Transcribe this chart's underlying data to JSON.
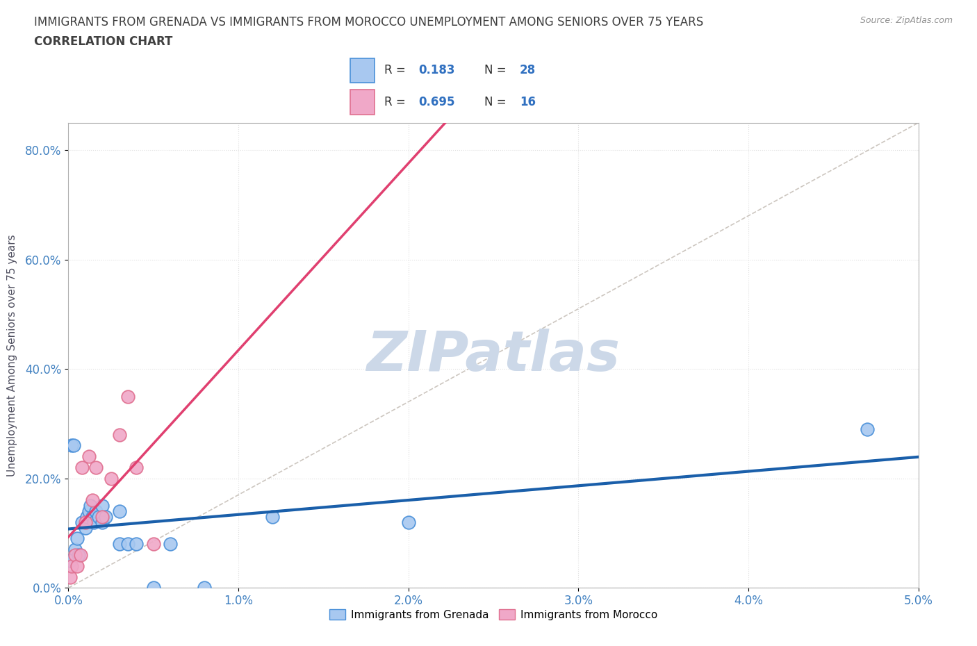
{
  "title_line1": "IMMIGRANTS FROM GRENADA VS IMMIGRANTS FROM MOROCCO UNEMPLOYMENT AMONG SENIORS OVER 75 YEARS",
  "title_line2": "CORRELATION CHART",
  "source_text": "Source: ZipAtlas.com",
  "ylabel": "Unemployment Among Seniors over 75 years",
  "xlim": [
    0.0,
    0.05
  ],
  "ylim": [
    0.0,
    0.85
  ],
  "xticks": [
    0.0,
    0.01,
    0.02,
    0.03,
    0.04,
    0.05
  ],
  "xticklabels": [
    "0.0%",
    "1.0%",
    "2.0%",
    "3.0%",
    "4.0%",
    "5.0%"
  ],
  "yticks": [
    0.0,
    0.2,
    0.4,
    0.6,
    0.8
  ],
  "yticklabels": [
    "0.0%",
    "20.0%",
    "40.0%",
    "60.0%",
    "80.0%"
  ],
  "grenada_color": "#a8c8f0",
  "morocco_color": "#f0a8c8",
  "grenada_edge_color": "#4a90d9",
  "morocco_edge_color": "#e07090",
  "trendline_grenada_color": "#1a5faa",
  "trendline_morocco_color": "#e04070",
  "diag_line_color": "#c0b8b0",
  "watermark_color": "#ccd8e8",
  "R_grenada": 0.183,
  "N_grenada": 28,
  "R_morocco": 0.695,
  "N_morocco": 16,
  "grenada_x": [
    0.0001,
    0.0002,
    0.0003,
    0.0004,
    0.0005,
    0.0006,
    0.0008,
    0.001,
    0.0011,
    0.0012,
    0.0013,
    0.0014,
    0.0015,
    0.0016,
    0.0018,
    0.002,
    0.002,
    0.0022,
    0.003,
    0.003,
    0.0035,
    0.004,
    0.005,
    0.006,
    0.008,
    0.012,
    0.02,
    0.047
  ],
  "grenada_y": [
    0.05,
    0.26,
    0.26,
    0.07,
    0.09,
    0.06,
    0.12,
    0.11,
    0.13,
    0.14,
    0.15,
    0.13,
    0.12,
    0.14,
    0.13,
    0.12,
    0.15,
    0.13,
    0.14,
    0.08,
    0.08,
    0.08,
    0.0,
    0.08,
    0.0,
    0.13,
    0.12,
    0.29
  ],
  "morocco_x": [
    0.0001,
    0.0002,
    0.0004,
    0.0005,
    0.0007,
    0.0008,
    0.001,
    0.0012,
    0.0014,
    0.0016,
    0.002,
    0.0025,
    0.003,
    0.0035,
    0.004,
    0.005
  ],
  "morocco_y": [
    0.02,
    0.04,
    0.06,
    0.04,
    0.06,
    0.22,
    0.12,
    0.24,
    0.16,
    0.22,
    0.13,
    0.2,
    0.28,
    0.35,
    0.22,
    0.08
  ],
  "background_color": "#ffffff",
  "title_color": "#404040",
  "axis_label_color": "#505060",
  "tick_label_color": "#4080c0",
  "grid_color": "#e0e0e0",
  "legend_R_color": "#3070c0",
  "legend_N_color": "#3070c0",
  "legend_text_color": "#303030"
}
